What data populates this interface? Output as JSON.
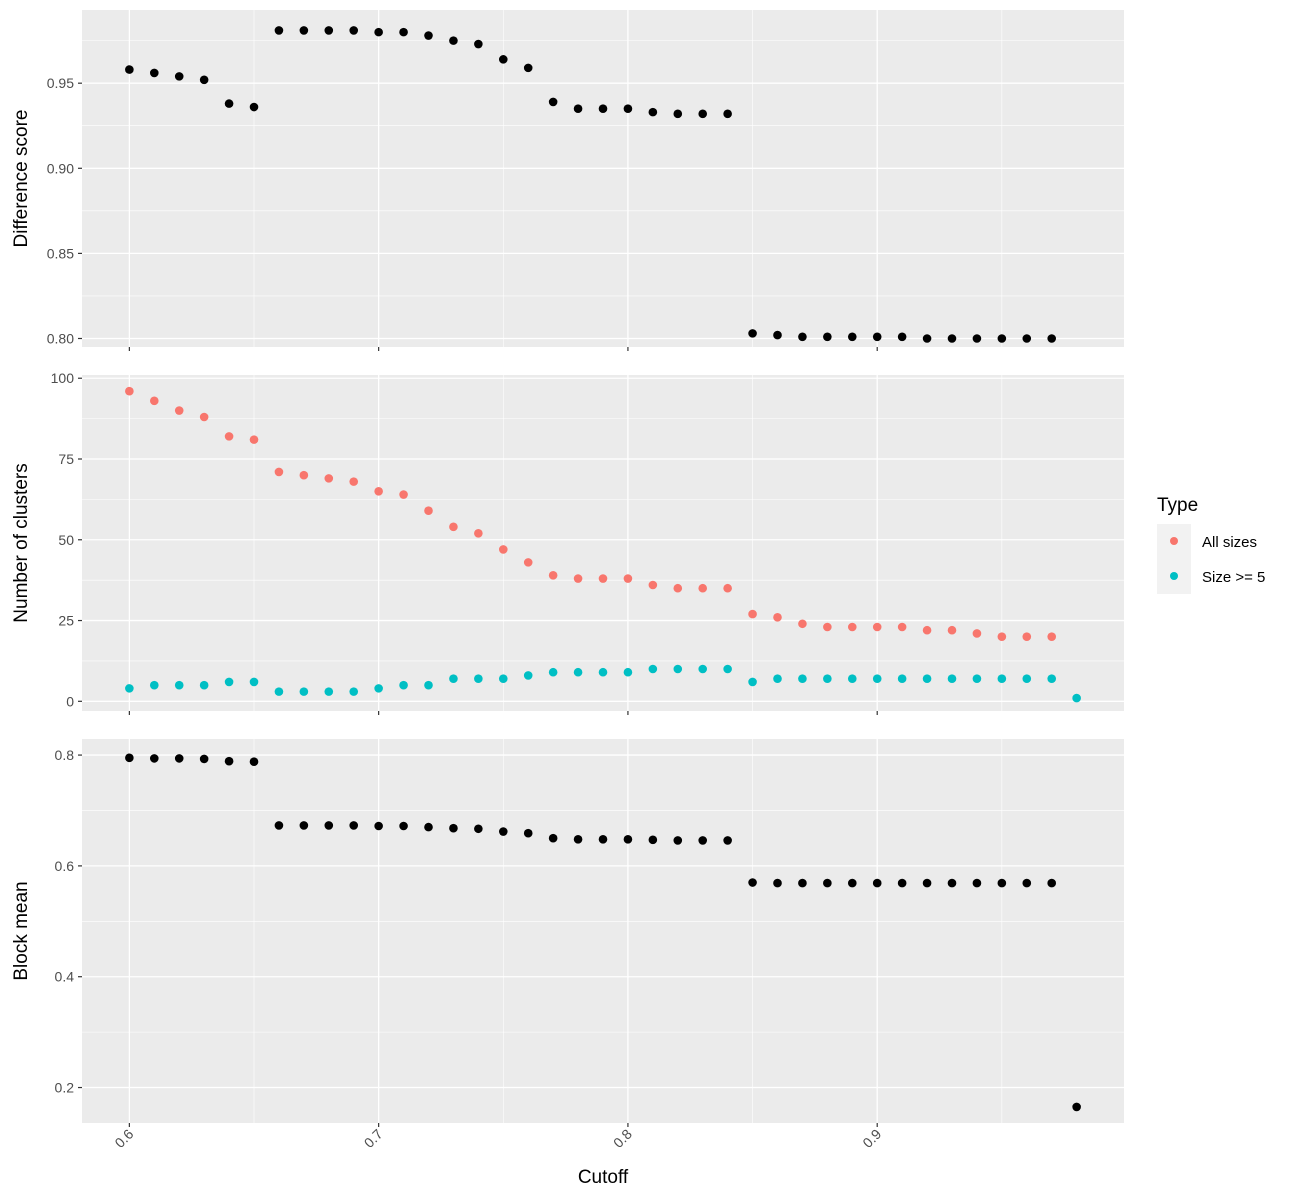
{
  "chart_data": [
    {
      "type": "scatter",
      "ylabel": "Difference score",
      "ylim": [
        0.795,
        0.993
      ],
      "yticks": [
        0.8,
        0.85,
        0.9,
        0.95
      ],
      "ytick_labels": [
        "0.80",
        "0.85",
        "0.90",
        "0.95"
      ],
      "series": [
        {
          "color": "#000000",
          "x": [
            0.6,
            0.61,
            0.62,
            0.63,
            0.64,
            0.65,
            0.66,
            0.67,
            0.68,
            0.69,
            0.7,
            0.71,
            0.72,
            0.73,
            0.74,
            0.75,
            0.76,
            0.77,
            0.78,
            0.79,
            0.8,
            0.81,
            0.82,
            0.83,
            0.84,
            0.85,
            0.86,
            0.87,
            0.88,
            0.89,
            0.9,
            0.91,
            0.92,
            0.93,
            0.94,
            0.95,
            0.96,
            0.97
          ],
          "y": [
            0.958,
            0.956,
            0.954,
            0.952,
            0.938,
            0.936,
            0.981,
            0.981,
            0.981,
            0.981,
            0.98,
            0.98,
            0.978,
            0.975,
            0.973,
            0.964,
            0.959,
            0.939,
            0.935,
            0.935,
            0.935,
            0.933,
            0.932,
            0.932,
            0.932,
            0.803,
            0.802,
            0.801,
            0.801,
            0.801,
            0.801,
            0.801,
            0.8,
            0.8,
            0.8,
            0.8,
            0.8,
            0.8
          ]
        }
      ]
    },
    {
      "type": "scatter",
      "ylabel": "Number of clusters",
      "ylim": [
        -3,
        101
      ],
      "yticks": [
        0,
        25,
        50,
        75,
        100
      ],
      "ytick_labels": [
        "0",
        "25",
        "50",
        "75",
        "100"
      ],
      "legend": {
        "title": "Type",
        "placement": "right"
      },
      "series": [
        {
          "name": "All sizes",
          "color": "#F8766D",
          "x": [
            0.6,
            0.61,
            0.62,
            0.63,
            0.64,
            0.65,
            0.66,
            0.67,
            0.68,
            0.69,
            0.7,
            0.71,
            0.72,
            0.73,
            0.74,
            0.75,
            0.76,
            0.77,
            0.78,
            0.79,
            0.8,
            0.81,
            0.82,
            0.83,
            0.84,
            0.85,
            0.86,
            0.87,
            0.88,
            0.89,
            0.9,
            0.91,
            0.92,
            0.93,
            0.94,
            0.95,
            0.96,
            0.97
          ],
          "y": [
            96,
            93,
            90,
            88,
            82,
            81,
            71,
            70,
            69,
            68,
            65,
            64,
            59,
            54,
            52,
            47,
            43,
            39,
            38,
            38,
            38,
            36,
            35,
            35,
            35,
            27,
            26,
            24,
            23,
            23,
            23,
            23,
            22,
            22,
            21,
            20,
            20,
            20
          ]
        },
        {
          "name": "Size >= 5",
          "color": "#00BFC4",
          "x": [
            0.6,
            0.61,
            0.62,
            0.63,
            0.64,
            0.65,
            0.66,
            0.67,
            0.68,
            0.69,
            0.7,
            0.71,
            0.72,
            0.73,
            0.74,
            0.75,
            0.76,
            0.77,
            0.78,
            0.79,
            0.8,
            0.81,
            0.82,
            0.83,
            0.84,
            0.85,
            0.86,
            0.87,
            0.88,
            0.89,
            0.9,
            0.91,
            0.92,
            0.93,
            0.94,
            0.95,
            0.96,
            0.97,
            0.98
          ],
          "y": [
            4,
            5,
            5,
            5,
            6,
            6,
            3,
            3,
            3,
            3,
            4,
            5,
            5,
            7,
            7,
            7,
            8,
            9,
            9,
            9,
            9,
            10,
            10,
            10,
            10,
            6,
            7,
            7,
            7,
            7,
            7,
            7,
            7,
            7,
            7,
            7,
            7,
            7,
            1
          ]
        }
      ]
    },
    {
      "type": "scatter",
      "ylabel": "Block mean",
      "ylim": [
        0.136,
        0.829
      ],
      "yticks": [
        0.2,
        0.4,
        0.6,
        0.8
      ],
      "ytick_labels": [
        "0.2",
        "0.4",
        "0.6",
        "0.8"
      ],
      "series": [
        {
          "color": "#000000",
          "x": [
            0.6,
            0.61,
            0.62,
            0.63,
            0.64,
            0.65,
            0.66,
            0.67,
            0.68,
            0.69,
            0.7,
            0.71,
            0.72,
            0.73,
            0.74,
            0.75,
            0.76,
            0.77,
            0.78,
            0.79,
            0.8,
            0.81,
            0.82,
            0.83,
            0.84,
            0.85,
            0.86,
            0.87,
            0.88,
            0.89,
            0.9,
            0.91,
            0.92,
            0.93,
            0.94,
            0.95,
            0.96,
            0.97,
            0.98
          ],
          "y": [
            0.795,
            0.794,
            0.794,
            0.793,
            0.789,
            0.788,
            0.673,
            0.673,
            0.673,
            0.673,
            0.672,
            0.672,
            0.67,
            0.668,
            0.667,
            0.662,
            0.659,
            0.65,
            0.648,
            0.648,
            0.648,
            0.647,
            0.646,
            0.646,
            0.646,
            0.57,
            0.569,
            0.569,
            0.569,
            0.569,
            0.569,
            0.569,
            0.569,
            0.569,
            0.569,
            0.569,
            0.569,
            0.569,
            0.165
          ]
        }
      ]
    }
  ],
  "shared_x": {
    "xlabel": "Cutoff",
    "xlim": [
      0.581,
      0.999
    ],
    "xticks": [
      0.6,
      0.7,
      0.8,
      0.9
    ],
    "xtick_labels": [
      "0.6",
      "0.7",
      "0.8",
      "0.9"
    ],
    "minor_xticks": [
      0.65,
      0.75,
      0.85,
      0.95
    ]
  },
  "colors": {
    "panel_background": "#EBEBEB",
    "grid": "#FFFFFF"
  }
}
